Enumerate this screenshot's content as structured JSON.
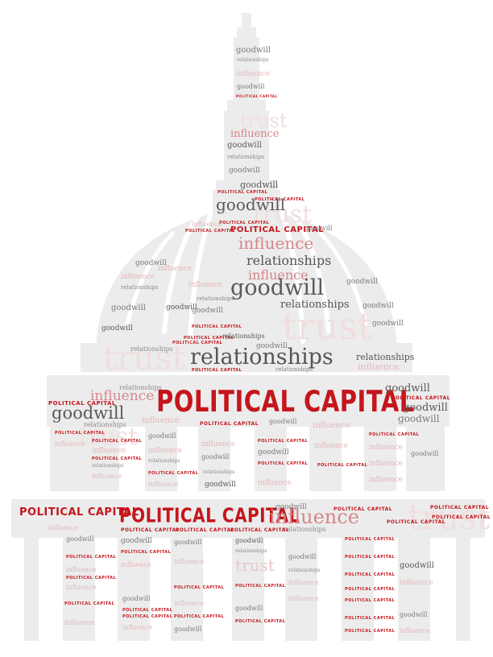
{
  "words": {
    "political_capital": "POLITICAL CAPITAL",
    "goodwill": "goodwill",
    "relationships": "relationships",
    "influence": "influence",
    "trust": "trust"
  },
  "colors": {
    "background": "#ffffff",
    "silhouette": "#e9e9e9",
    "political_capital": "#c4161c",
    "goodwill": "#5a5a5a",
    "influence": "#d7868b",
    "relationships": "#555555",
    "trust": "#f0dede"
  }
}
